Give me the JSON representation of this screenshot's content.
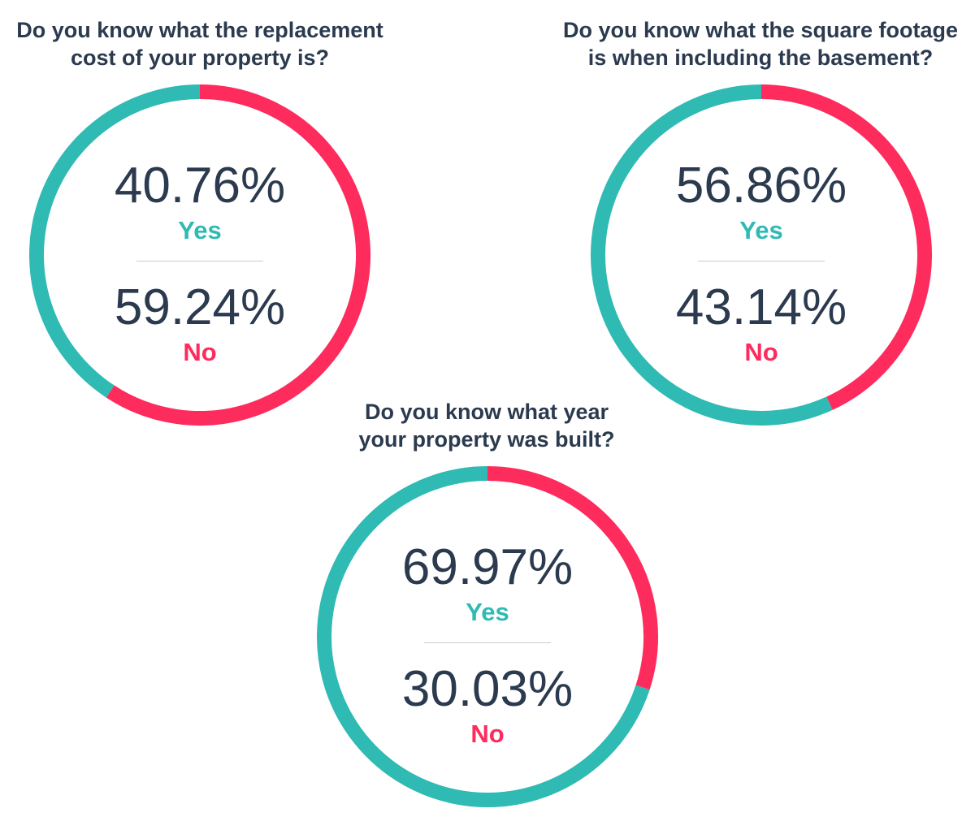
{
  "colors": {
    "yes": "#2fbab4",
    "no": "#fd2c5d",
    "text": "#2b3a4e",
    "divider": "#c8ccd3"
  },
  "chart_data": [
    {
      "type": "pie",
      "variant": "donut",
      "title_lines": [
        "Do you know what the replacement",
        "cost of your property is?"
      ],
      "slices": [
        {
          "label": "Yes",
          "value": 40.76,
          "display": "40.76%",
          "color": "#2fbab4"
        },
        {
          "label": "No",
          "value": 59.24,
          "display": "59.24%",
          "color": "#fd2c5d"
        }
      ]
    },
    {
      "type": "pie",
      "variant": "donut",
      "title_lines": [
        "Do you know what the square footage",
        "is when including the basement?"
      ],
      "slices": [
        {
          "label": "Yes",
          "value": 56.86,
          "display": "56.86%",
          "color": "#2fbab4"
        },
        {
          "label": "No",
          "value": 43.14,
          "display": "43.14%",
          "color": "#fd2c5d"
        }
      ]
    },
    {
      "type": "pie",
      "variant": "donut",
      "title_lines": [
        "Do you know what year",
        "your property was built?"
      ],
      "slices": [
        {
          "label": "Yes",
          "value": 69.97,
          "display": "69.97%",
          "color": "#2fbab4"
        },
        {
          "label": "No",
          "value": 30.03,
          "display": "30.03%",
          "color": "#fd2c5d"
        }
      ]
    }
  ]
}
